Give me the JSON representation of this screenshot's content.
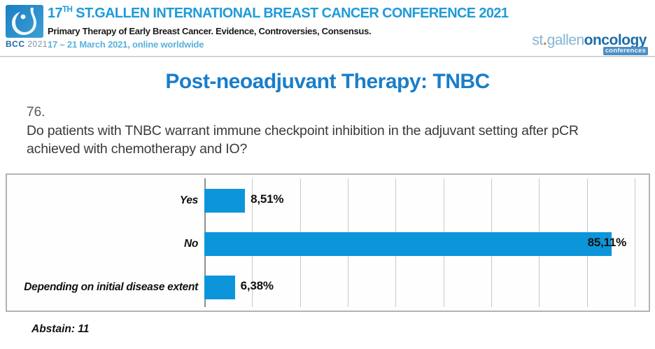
{
  "header": {
    "logo": {
      "name": "BCC",
      "year": "2021"
    },
    "title_prefix": "17",
    "title_sup": "TH",
    "title_rest": " ST.GALLEN INTERNATIONAL BREAST CANCER CONFERENCE 2021",
    "subtitle": "Primary Therapy of Early Breast Cancer. Evidence, Controversies, Consensus.",
    "dates": "17 – 21 March 2021, online worldwide",
    "brand": {
      "part1": "st",
      "dot": ".",
      "part2": "gallen",
      "part3": "oncology",
      "chip": "conferences"
    }
  },
  "slide": {
    "title": "Post-neoadjuvant Therapy: TNBC",
    "question_number": "76.",
    "question": "Do patients with TNBC warrant immune checkpoint inhibition in the adjuvant setting after pCR achieved with chemotherapy and IO?",
    "abstain": "Abstain: 11"
  },
  "chart_data": {
    "type": "bar",
    "orientation": "horizontal",
    "title": "",
    "categories": [
      "Yes",
      "No",
      "Depending on initial disease extent"
    ],
    "values": [
      8.51,
      85.11,
      6.38
    ],
    "value_labels": [
      "8,51%",
      "85,11%",
      "6,38%"
    ],
    "axis_min": 0,
    "axis_max": 90,
    "gridline_step": 10,
    "grid": true,
    "legend": false,
    "bar_color": "#0d95da"
  },
  "colors": {
    "header_blue": "#209bd8",
    "dates_blue": "#5ab2dd",
    "title_blue": "#1a7ec9",
    "bar_blue": "#0d95da",
    "brand_light_blue": "#85b4d3",
    "brand_dark_blue": "#1d6da9",
    "brand_orange": "#e07b39"
  }
}
